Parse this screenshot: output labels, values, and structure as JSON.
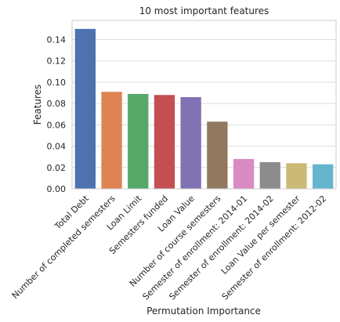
{
  "chart_data": {
    "type": "bar",
    "title": "10 most important features",
    "xlabel": "Permutation Importance",
    "ylabel": "Features",
    "ylim": [
      0,
      0.158
    ],
    "yticks": [
      0.0,
      0.02,
      0.04,
      0.06,
      0.08,
      0.1,
      0.12,
      0.14
    ],
    "ytick_labels": [
      "0.00",
      "0.02",
      "0.04",
      "0.06",
      "0.08",
      "0.10",
      "0.12",
      "0.14"
    ],
    "grid": "horizontal",
    "categories": [
      "Total Debt",
      "Number of completed semesters",
      "Loan Limit",
      "Semesters funded",
      "Loan Value",
      "Number of course semesters",
      "Semester of enrollment: 2014-01",
      "Semester of enrollment: 2014-02",
      "Loan Value per semester",
      "Semester of enrollment: 2012-02"
    ],
    "values": [
      0.15,
      0.091,
      0.089,
      0.088,
      0.086,
      0.063,
      0.028,
      0.025,
      0.024,
      0.023
    ],
    "colors": [
      "#4c72b0",
      "#dd8452",
      "#55a868",
      "#c44e52",
      "#8172b3",
      "#937860",
      "#da8bc3",
      "#8c8c8c",
      "#ccb974",
      "#64b5cd"
    ]
  }
}
